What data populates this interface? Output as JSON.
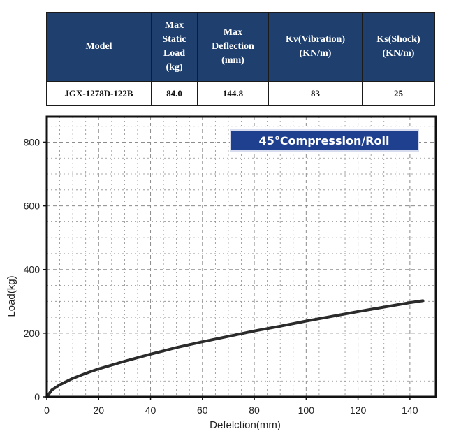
{
  "spec_table": {
    "headers": [
      [
        "Model"
      ],
      [
        "Max",
        "Static",
        "Load",
        "(kg)"
      ],
      [
        "Max",
        "Deflection",
        "(mm)"
      ],
      [
        "Kv(Vibration)",
        "(KN/m)"
      ],
      [
        "Ks(Shock)",
        "(KN/m)"
      ]
    ],
    "row": [
      "JGX-1278D-122B",
      "84.0",
      "144.8",
      "83",
      "25"
    ]
  },
  "chart_data": {
    "type": "line",
    "title": "45°Compression/Roll",
    "xlabel": "Defelction(mm)",
    "ylabel": "Load(kg)",
    "xlim": [
      0,
      150
    ],
    "ylim": [
      0,
      880
    ],
    "x_ticks": [
      0,
      20,
      40,
      60,
      80,
      100,
      120,
      140
    ],
    "y_ticks": [
      0,
      200,
      400,
      600,
      800
    ],
    "grid": true,
    "colors": {
      "badge": "#1f3f8f",
      "line": "#2b2b2b",
      "grid": "#8c8c8c"
    },
    "series": [
      {
        "x": [
          0,
          2,
          5,
          10,
          15,
          20,
          30,
          40,
          50,
          60,
          70,
          80,
          90,
          100,
          110,
          120,
          130,
          140,
          145
        ],
        "y": [
          0,
          22,
          38,
          58,
          74,
          88,
          112,
          134,
          155,
          173,
          190,
          207,
          222,
          238,
          253,
          268,
          282,
          296,
          302
        ]
      }
    ]
  }
}
